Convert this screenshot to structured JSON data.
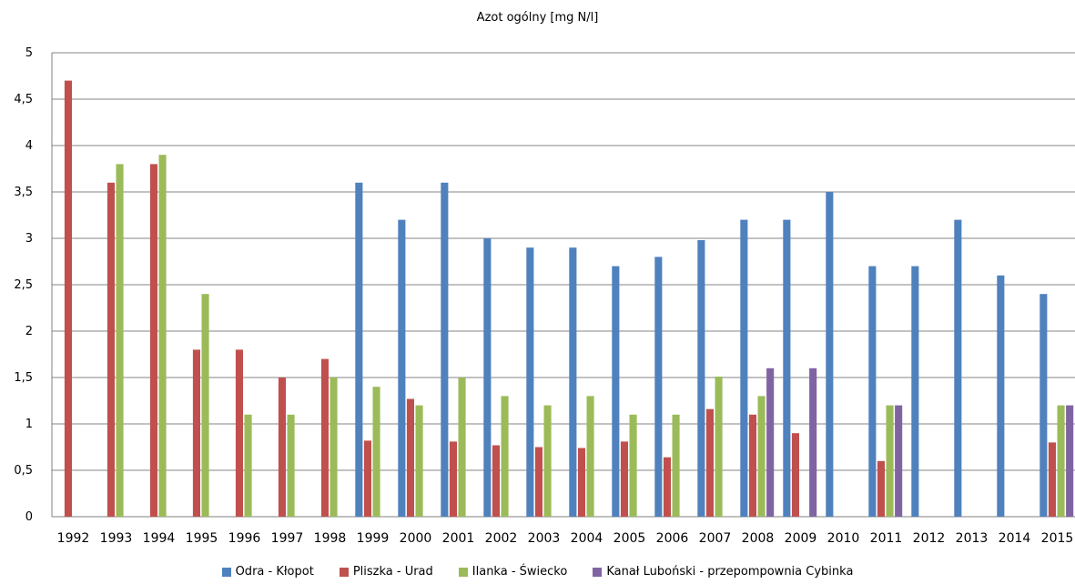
{
  "chart_data": {
    "type": "bar",
    "title": "Azot ogólny [mg N/l]",
    "xlabel": "",
    "ylabel": "",
    "ylim": [
      0,
      5
    ],
    "yticks": [
      "0",
      "0,5",
      "1",
      "1,5",
      "2",
      "2,5",
      "3",
      "3,5",
      "4",
      "4,5",
      "5"
    ],
    "grid": true,
    "legend": "bottom",
    "categories": [
      "1992",
      "1993",
      "1994",
      "1995",
      "1996",
      "1997",
      "1998",
      "1999",
      "2000",
      "2001",
      "2002",
      "2003",
      "2004",
      "2005",
      "2006",
      "2007",
      "2008",
      "2009",
      "2010",
      "2011",
      "2012",
      "2013",
      "2014",
      "2015"
    ],
    "series": [
      {
        "name": "Odra - Kłopot",
        "color": "#4f81bd",
        "values": [
          null,
          null,
          null,
          null,
          null,
          null,
          null,
          3.6,
          3.2,
          3.6,
          3.0,
          2.9,
          2.9,
          2.7,
          2.8,
          2.98,
          3.2,
          3.2,
          3.5,
          2.7,
          2.7,
          3.2,
          2.6,
          2.4
        ]
      },
      {
        "name": "Pliszka - Urad",
        "color": "#c0504d",
        "values": [
          4.7,
          3.6,
          3.8,
          1.8,
          1.8,
          1.5,
          1.7,
          0.82,
          1.27,
          0.81,
          0.77,
          0.75,
          0.74,
          0.81,
          0.64,
          1.16,
          1.1,
          0.9,
          null,
          0.6,
          null,
          null,
          null,
          0.8
        ]
      },
      {
        "name": "Ilanka - Świecko",
        "color": "#9bbb59",
        "values": [
          null,
          3.8,
          3.9,
          2.4,
          1.1,
          1.1,
          1.5,
          1.4,
          1.2,
          1.5,
          1.3,
          1.2,
          1.3,
          1.1,
          1.1,
          1.51,
          1.3,
          null,
          null,
          1.2,
          null,
          null,
          null,
          1.2
        ]
      },
      {
        "name": "Kanał Luboński - przepompownia Cybinka",
        "color": "#8064a2",
        "values": [
          null,
          null,
          null,
          null,
          null,
          null,
          null,
          null,
          null,
          null,
          null,
          null,
          null,
          null,
          null,
          null,
          1.6,
          1.6,
          null,
          1.2,
          null,
          null,
          null,
          1.2
        ]
      }
    ]
  }
}
